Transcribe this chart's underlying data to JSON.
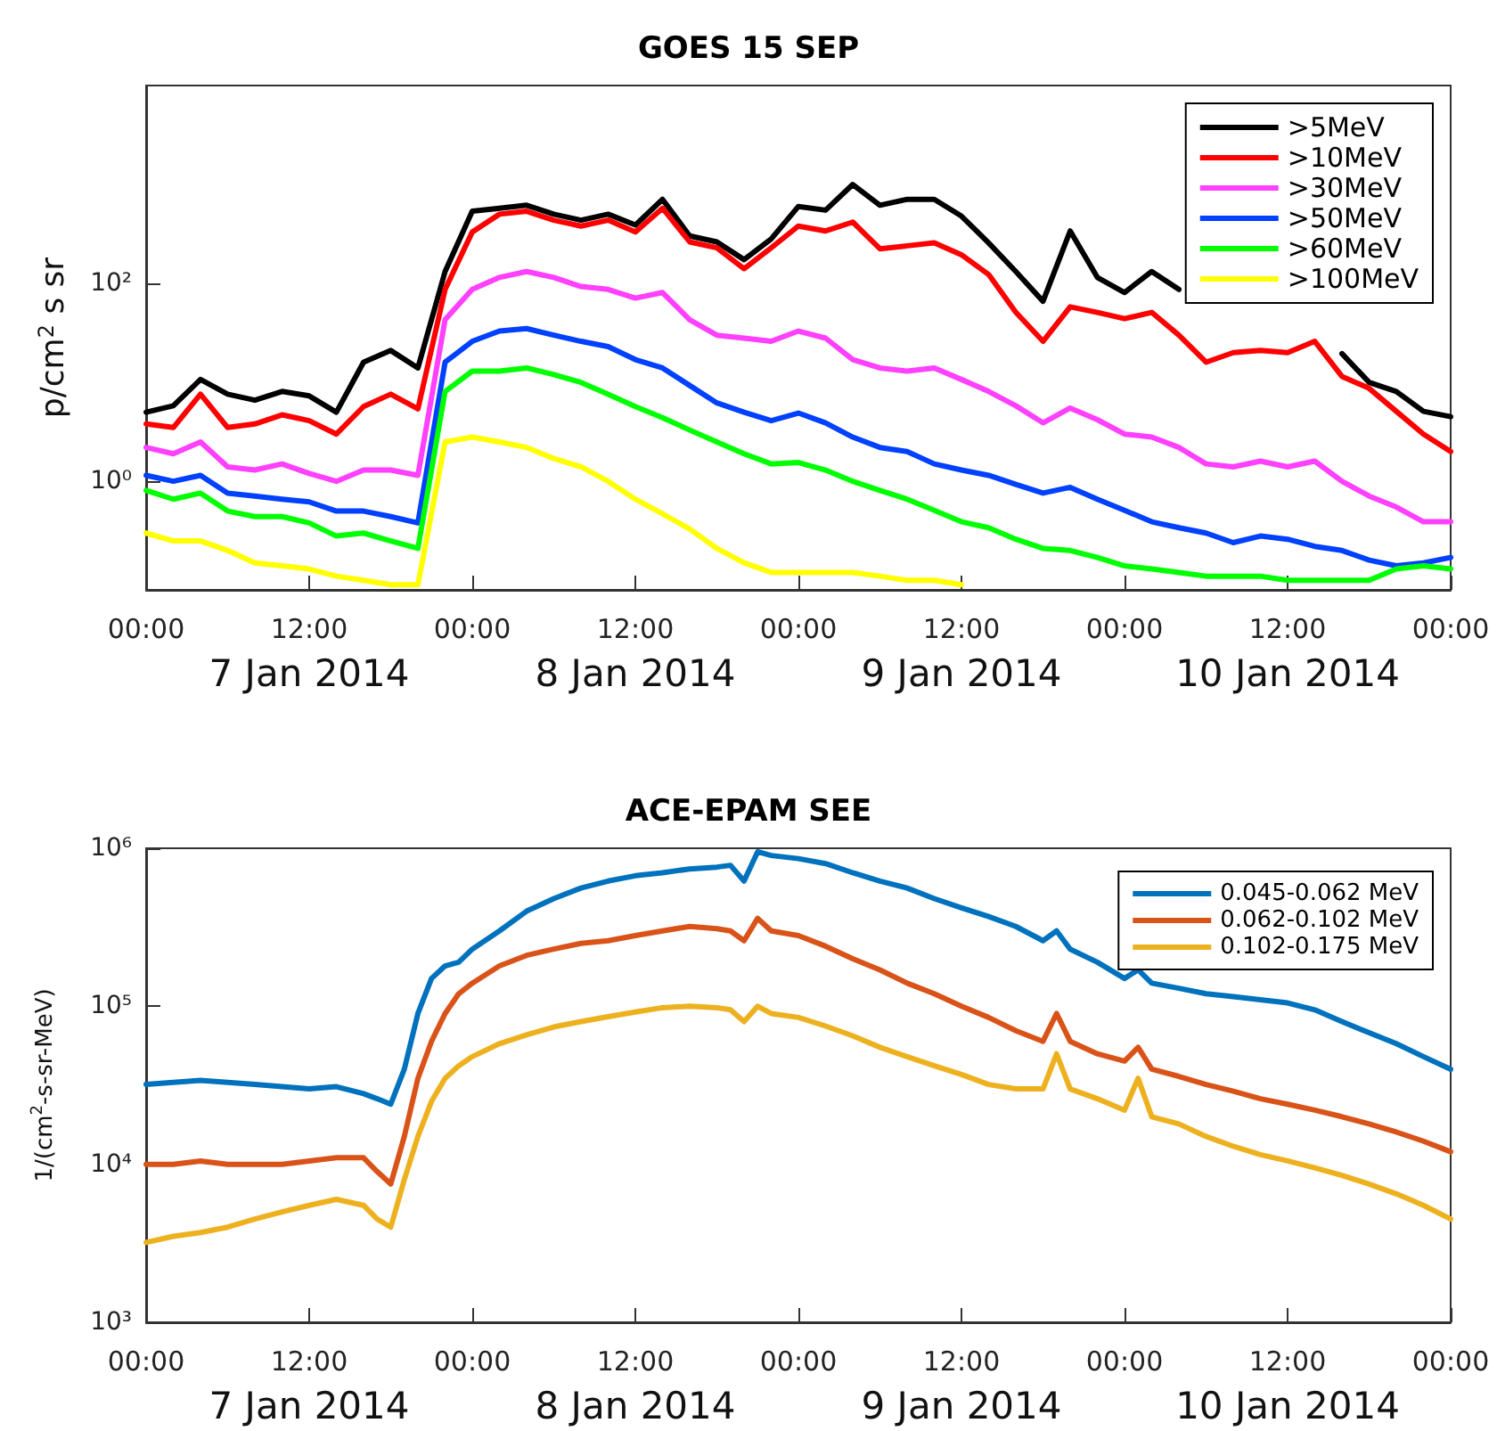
{
  "chart_data": [
    {
      "type": "line",
      "title": "GOES 15 SEP",
      "ylabel": "p/cm$^{2}$ s sr",
      "log": "y",
      "legend": "top right",
      "marker": "none",
      "line_style": "solid",
      "xlim": [
        "2014-01-07T00:00",
        "2014-01-11T00:00"
      ],
      "xticks": [
        {
          "value": "2014-01-07T00:00",
          "label": "00:00"
        },
        {
          "value": "2014-01-07T12:00",
          "label": "12:00\n7 Jan 2014"
        },
        {
          "value": "2014-01-08T00:00",
          "label": "00:00"
        },
        {
          "value": "2014-01-08T12:00",
          "label": "12:00\n8 Jan 2014"
        },
        {
          "value": "2014-01-09T00:00",
          "label": "00:00"
        },
        {
          "value": "2014-01-09T12:00",
          "label": "12:00\n9 Jan 2014"
        },
        {
          "value": "2014-01-10T00:00",
          "label": "00:00"
        },
        {
          "value": "2014-01-10T12:00",
          "label": "12:00\n10 Jan 2014"
        },
        {
          "value": "2014-01-11T00:00",
          "label": "00:00"
        }
      ],
      "ylim": [
        0.08,
        10000
      ],
      "yticks": [
        {
          "value": 1,
          "label": "10⁰"
        },
        {
          "value": 100,
          "label": "10²"
        }
      ],
      "x": [
        "2014-01-07T00:00",
        "2014-01-07T02:00",
        "2014-01-07T04:00",
        "2014-01-07T06:00",
        "2014-01-07T08:00",
        "2014-01-07T10:00",
        "2014-01-07T12:00",
        "2014-01-07T14:00",
        "2014-01-07T16:00",
        "2014-01-07T18:00",
        "2014-01-07T20:00",
        "2014-01-07T22:00",
        "2014-01-08T00:00",
        "2014-01-08T02:00",
        "2014-01-08T04:00",
        "2014-01-08T06:00",
        "2014-01-08T08:00",
        "2014-01-08T10:00",
        "2014-01-08T12:00",
        "2014-01-08T14:00",
        "2014-01-08T16:00",
        "2014-01-08T18:00",
        "2014-01-08T20:00",
        "2014-01-08T22:00",
        "2014-01-09T00:00",
        "2014-01-09T02:00",
        "2014-01-09T04:00",
        "2014-01-09T06:00",
        "2014-01-09T08:00",
        "2014-01-09T10:00",
        "2014-01-09T12:00",
        "2014-01-09T14:00",
        "2014-01-09T16:00",
        "2014-01-09T18:00",
        "2014-01-09T20:00",
        "2014-01-09T22:00",
        "2014-01-10T00:00",
        "2014-01-10T02:00",
        "2014-01-10T04:00",
        "2014-01-10T06:00",
        "2014-01-10T08:00",
        "2014-01-10T10:00",
        "2014-01-10T12:00",
        "2014-01-10T14:00",
        "2014-01-10T16:00",
        "2014-01-10T18:00",
        "2014-01-10T20:00",
        "2014-01-10T22:00",
        "2014-01-11T00:00"
      ],
      "series": [
        {
          "name": ">5MeV",
          "color": "#000000",
          "values": [
            5.0,
            5.8,
            10.7,
            7.6,
            6.6,
            8.1,
            7.3,
            5.0,
            16,
            21,
            14,
            132,
            537,
            575,
            617,
            501,
            436,
            501,
            389,
            708,
            302,
            263,
            174,
            282,
            600,
            550,
            1000,
            617,
            708,
            708,
            479,
            257,
            132,
            66,
            339,
            115,
            81,
            132,
            87,
            null,
            null,
            null,
            null,
            null,
            19.5,
            10,
            8.1,
            5.1,
            4.5
          ]
        },
        {
          "name": ">10MeV",
          "color": "#ff0000",
          "values": [
            3.8,
            3.5,
            7.6,
            3.5,
            3.8,
            4.7,
            4.1,
            3.0,
            5.7,
            7.6,
            5.4,
            87,
            331,
            501,
            537,
            436,
            380,
            436,
            331,
            575,
            263,
            229,
            141,
            229,
            380,
            339,
            417,
            224,
            240,
            257,
            195,
            123,
            51,
            26,
            58,
            51,
            44,
            51,
            30,
            16,
            20,
            21,
            20,
            26,
            11.5,
            8.7,
            5.1,
            3.0,
            2.0
          ]
        },
        {
          "name": ">30MeV",
          "color": "#ff40ff",
          "values": [
            2.2,
            1.9,
            2.5,
            1.4,
            1.3,
            1.5,
            1.2,
            1.0,
            1.3,
            1.3,
            1.15,
            43,
            87,
            115,
            132,
            115,
            93,
            87,
            71,
            81,
            43,
            30,
            28,
            26,
            33,
            28,
            17,
            14,
            13,
            14,
            10.7,
            8.1,
            5.8,
            3.9,
            5.5,
            4.2,
            3.0,
            2.8,
            2.2,
            1.5,
            1.4,
            1.6,
            1.4,
            1.6,
            1.0,
            0.71,
            0.55,
            0.39,
            0.39
          ]
        },
        {
          "name": ">50MeV",
          "color": "#0040ff",
          "values": [
            1.15,
            1.0,
            1.15,
            0.76,
            0.71,
            0.66,
            0.62,
            0.5,
            0.5,
            0.44,
            0.38,
            16,
            26,
            33,
            35,
            30,
            26,
            23,
            17,
            14,
            9.3,
            6.2,
            5.0,
            4.1,
            4.9,
            3.9,
            2.8,
            2.2,
            2.0,
            1.5,
            1.3,
            1.15,
            0.93,
            0.76,
            0.87,
            0.66,
            0.51,
            0.39,
            0.34,
            0.3,
            0.24,
            0.28,
            0.26,
            0.22,
            0.2,
            0.16,
            0.14,
            0.15,
            0.17
          ]
        },
        {
          "name": ">60MeV",
          "color": "#00ff00",
          "values": [
            0.81,
            0.66,
            0.76,
            0.5,
            0.44,
            0.44,
            0.38,
            0.28,
            0.3,
            0.25,
            0.21,
            8.1,
            13,
            13,
            14,
            12,
            10,
            7.6,
            5.7,
            4.4,
            3.3,
            2.5,
            1.9,
            1.5,
            1.55,
            1.3,
            1.0,
            0.81,
            0.66,
            0.51,
            0.39,
            0.34,
            0.26,
            0.21,
            0.2,
            0.17,
            0.14,
            0.13,
            0.12,
            0.11,
            0.11,
            0.11,
            0.1,
            0.1,
            0.1,
            0.1,
            0.13,
            0.14,
            0.13
          ]
        },
        {
          "name": ">100MeV",
          "color": "#ffff00",
          "values": [
            0.3,
            0.25,
            0.25,
            0.2,
            0.15,
            0.14,
            0.13,
            0.11,
            0.1,
            0.09,
            0.09,
            2.5,
            2.8,
            2.5,
            2.2,
            1.7,
            1.4,
            1.0,
            0.66,
            0.47,
            0.33,
            0.21,
            0.15,
            0.12,
            0.12,
            0.12,
            0.12,
            0.11,
            0.1,
            0.1,
            0.09,
            null,
            null,
            null,
            null,
            null,
            null,
            null,
            null,
            null,
            null,
            null,
            null,
            null,
            null,
            null,
            null,
            null,
            null
          ]
        }
      ]
    },
    {
      "type": "line",
      "title": "ACE-EPAM SEE",
      "ylabel": "1/(cm$^{2}$-s-sr-MeV)",
      "log": "y",
      "legend": "top right",
      "marker": "none",
      "line_style": "solid",
      "xlim": [
        "2014-01-07T00:00",
        "2014-01-11T00:00"
      ],
      "xticks": [
        {
          "value": "2014-01-07T00:00",
          "label": "00:00"
        },
        {
          "value": "2014-01-07T12:00",
          "label": "12:00\n7 Jan 2014"
        },
        {
          "value": "2014-01-08T00:00",
          "label": "00:00"
        },
        {
          "value": "2014-01-08T12:00",
          "label": "12:00\n8 Jan 2014"
        },
        {
          "value": "2014-01-09T00:00",
          "label": "00:00"
        },
        {
          "value": "2014-01-09T12:00",
          "label": "12:00\n9 Jan 2014"
        },
        {
          "value": "2014-01-10T00:00",
          "label": "00:00"
        },
        {
          "value": "2014-01-10T12:00",
          "label": "12:00\n10 Jan 2014"
        },
        {
          "value": "2014-01-11T00:00",
          "label": "00:00"
        }
      ],
      "ylim": [
        1000,
        1000000
      ],
      "yticks": [
        {
          "value": 1000,
          "label": "10³"
        },
        {
          "value": 10000,
          "label": "10⁴"
        },
        {
          "value": 100000,
          "label": "10⁵"
        },
        {
          "value": 1000000,
          "label": "10⁶"
        }
      ],
      "x": [
        "2014-01-07T00:00",
        "2014-01-07T02:00",
        "2014-01-07T04:00",
        "2014-01-07T06:00",
        "2014-01-07T08:00",
        "2014-01-07T10:00",
        "2014-01-07T12:00",
        "2014-01-07T14:00",
        "2014-01-07T16:00",
        "2014-01-07T17:00",
        "2014-01-07T18:00",
        "2014-01-07T19:00",
        "2014-01-07T20:00",
        "2014-01-07T21:00",
        "2014-01-07T22:00",
        "2014-01-07T23:00",
        "2014-01-08T00:00",
        "2014-01-08T02:00",
        "2014-01-08T04:00",
        "2014-01-08T06:00",
        "2014-01-08T08:00",
        "2014-01-08T10:00",
        "2014-01-08T12:00",
        "2014-01-08T14:00",
        "2014-01-08T16:00",
        "2014-01-08T18:00",
        "2014-01-08T19:00",
        "2014-01-08T20:00",
        "2014-01-08T21:00",
        "2014-01-08T22:00",
        "2014-01-09T00:00",
        "2014-01-09T02:00",
        "2014-01-09T04:00",
        "2014-01-09T06:00",
        "2014-01-09T08:00",
        "2014-01-09T10:00",
        "2014-01-09T12:00",
        "2014-01-09T14:00",
        "2014-01-09T16:00",
        "2014-01-09T18:00",
        "2014-01-09T19:00",
        "2014-01-09T20:00",
        "2014-01-09T22:00",
        "2014-01-10T00:00",
        "2014-01-10T01:00",
        "2014-01-10T02:00",
        "2014-01-10T04:00",
        "2014-01-10T06:00",
        "2014-01-10T08:00",
        "2014-01-10T10:00",
        "2014-01-10T12:00",
        "2014-01-10T14:00",
        "2014-01-10T16:00",
        "2014-01-10T18:00",
        "2014-01-10T20:00",
        "2014-01-10T22:00",
        "2014-01-11T00:00"
      ],
      "series": [
        {
          "name": "0.045-0.062 MeV",
          "color": "#0072bd",
          "values": [
            32000,
            33000,
            34000,
            33000,
            32000,
            31000,
            30000,
            31000,
            28000,
            26000,
            24000,
            40000,
            90000,
            150000,
            180000,
            190000,
            230000,
            300000,
            400000,
            480000,
            560000,
            620000,
            670000,
            700000,
            740000,
            760000,
            780000,
            620000,
            950000,
            900000,
            860000,
            800000,
            700000,
            620000,
            560000,
            480000,
            420000,
            370000,
            320000,
            260000,
            300000,
            230000,
            190000,
            150000,
            170000,
            140000,
            130000,
            120000,
            115000,
            110000,
            105000,
            95000,
            80000,
            68000,
            58000,
            48000,
            40000
          ]
        },
        {
          "name": "0.062-0.102 MeV",
          "color": "#d95319",
          "values": [
            10000,
            10000,
            10500,
            10000,
            10000,
            10000,
            10500,
            11000,
            11000,
            9000,
            7500,
            15000,
            35000,
            60000,
            90000,
            120000,
            140000,
            180000,
            210000,
            230000,
            250000,
            260000,
            280000,
            300000,
            320000,
            310000,
            300000,
            260000,
            360000,
            300000,
            280000,
            240000,
            200000,
            170000,
            140000,
            120000,
            100000,
            85000,
            70000,
            60000,
            90000,
            60000,
            50000,
            45000,
            55000,
            40000,
            36000,
            32000,
            29000,
            26000,
            24000,
            22000,
            20000,
            18000,
            16000,
            14000,
            12000
          ]
        },
        {
          "name": "0.102-0.175 MeV",
          "color": "#edb120",
          "values": [
            3200,
            3500,
            3700,
            4000,
            4500,
            5000,
            5500,
            6000,
            5500,
            4500,
            4000,
            8000,
            15000,
            25000,
            35000,
            42000,
            48000,
            58000,
            66000,
            74000,
            80000,
            86000,
            92000,
            98000,
            100000,
            98000,
            95000,
            80000,
            100000,
            90000,
            85000,
            75000,
            65000,
            55000,
            48000,
            42000,
            37000,
            32000,
            30000,
            30000,
            50000,
            30000,
            26000,
            22000,
            35000,
            20000,
            18000,
            15000,
            13000,
            11500,
            10500,
            9500,
            8500,
            7500,
            6500,
            5500,
            4500
          ]
        }
      ]
    }
  ]
}
